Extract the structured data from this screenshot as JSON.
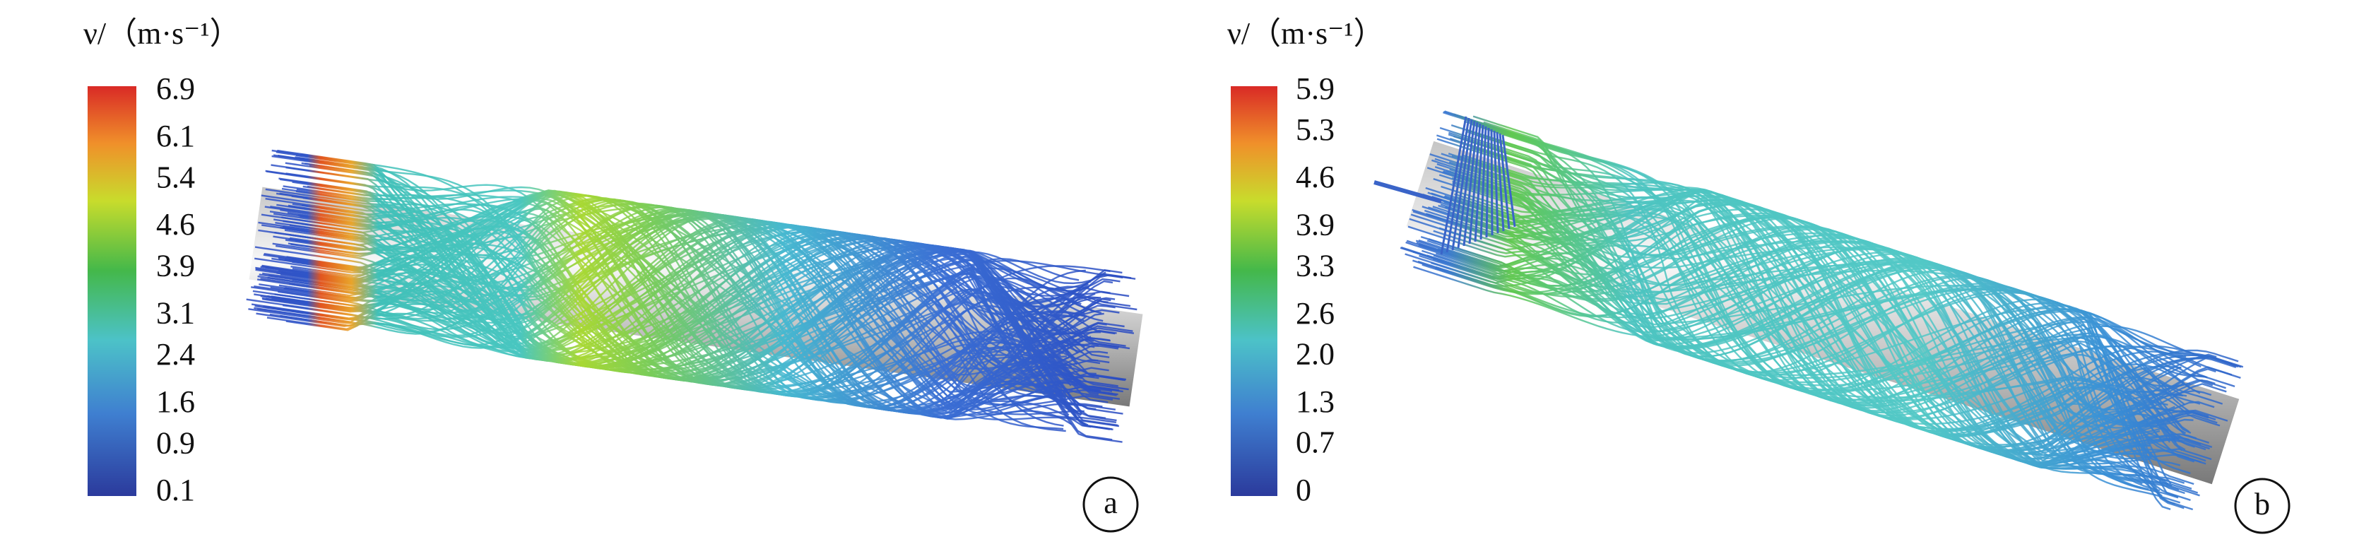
{
  "panels": [
    {
      "unit_label": "ν/（m·s⁻¹）",
      "colorbar_ticks": [
        6.9,
        6.1,
        5.4,
        4.6,
        3.9,
        3.1,
        2.4,
        1.6,
        0.9,
        0.1
      ],
      "panel_label": "a"
    },
    {
      "unit_label": "ν/（m·s⁻¹）",
      "colorbar_ticks": [
        5.9,
        5.3,
        4.6,
        3.9,
        3.3,
        2.6,
        {
          "value": 2,
          "label": "2.0"
        },
        1.3,
        0.7,
        0
      ],
      "panel_label": "b"
    }
  ]
}
